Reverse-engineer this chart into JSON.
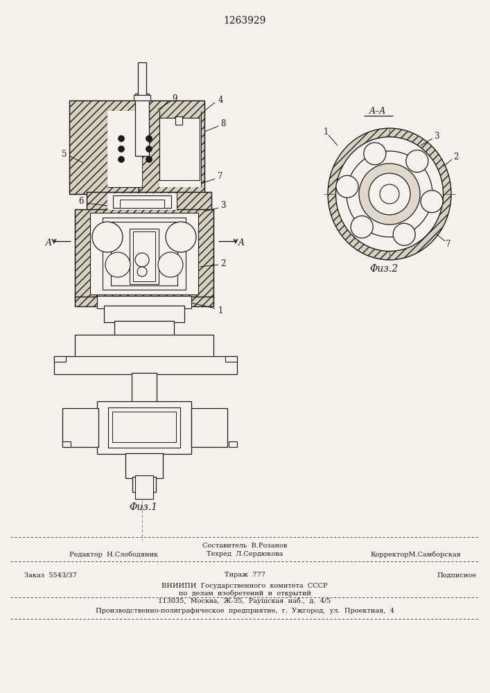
{
  "patent_number": "1263929",
  "bg_color": "#f5f2ee",
  "line_color": "#1a1a1a",
  "title_fontsize": 10,
  "label_fontsize": 8,
  "footer_fontsize": 7,
  "fig1_caption": "Φuз.1",
  "fig2_caption": "Φuз.2",
  "hatch_fc": "#d8d0c0"
}
